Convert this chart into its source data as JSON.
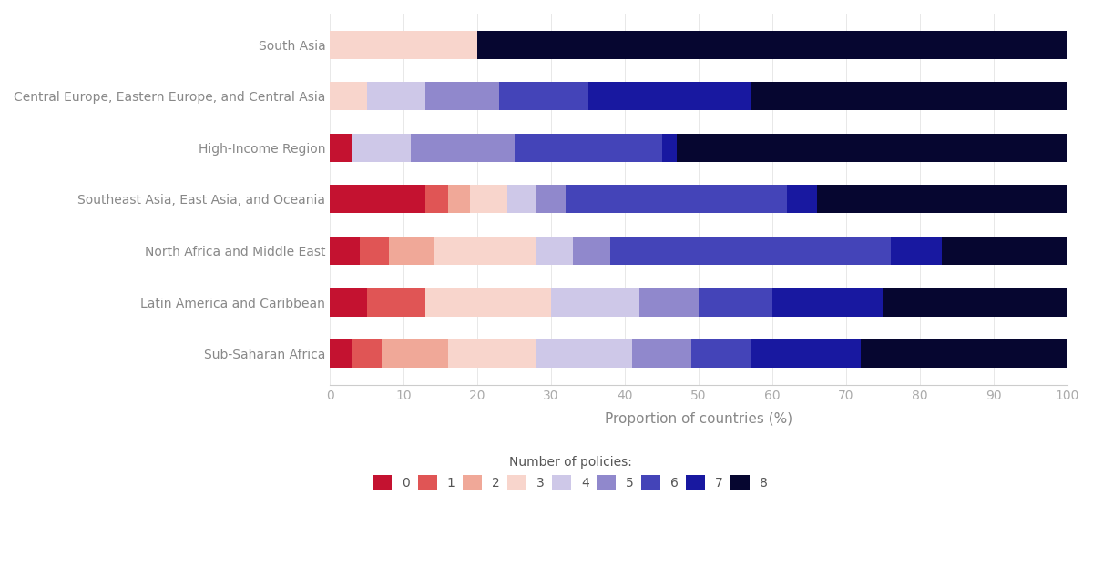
{
  "regions": [
    "Sub-Saharan Africa",
    "Latin America and Caribbean",
    "North Africa and Middle East",
    "Southeast Asia, East Asia, and Oceania",
    "High-Income Region",
    "Central Europe, Eastern Europe, and Central Asia",
    "South Asia"
  ],
  "policy_counts": [
    0,
    1,
    2,
    3,
    4,
    5,
    6,
    7,
    8
  ],
  "colors": [
    "#c41230",
    "#e05555",
    "#f0a898",
    "#f8d5cc",
    "#cec8e8",
    "#9088cc",
    "#4444b8",
    "#1818a0",
    "#060630"
  ],
  "data": {
    "South Asia": [
      0,
      0,
      0,
      20,
      0,
      0,
      0,
      0,
      80
    ],
    "Central Europe, Eastern Europe, and Central Asia": [
      0,
      0,
      0,
      5,
      8,
      10,
      12,
      22,
      43
    ],
    "High-Income Region": [
      3,
      0,
      0,
      0,
      8,
      14,
      20,
      2,
      53
    ],
    "Southeast Asia, East Asia, and Oceania": [
      13,
      3,
      3,
      5,
      4,
      4,
      30,
      4,
      34
    ],
    "North Africa and Middle East": [
      4,
      4,
      6,
      14,
      5,
      5,
      38,
      7,
      17
    ],
    "Latin America and Caribbean": [
      5,
      8,
      0,
      17,
      12,
      8,
      10,
      15,
      25
    ],
    "Sub-Saharan Africa": [
      3,
      4,
      9,
      12,
      13,
      8,
      8,
      15,
      28
    ]
  },
  "xlabel": "Proportion of countries (%)",
  "legend_title": "Number of policies:",
  "xlim": [
    0,
    100
  ],
  "background_color": "#ffffff",
  "bar_height": 0.55
}
